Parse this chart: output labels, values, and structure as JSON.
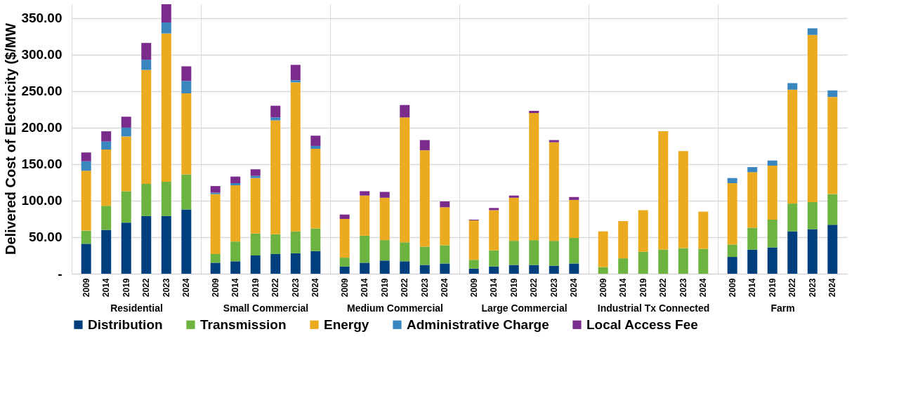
{
  "chart_data": [
    {
      "type": "bar",
      "stacked": true,
      "xlabel": "Residential",
      "ylabel": "Delivered Cost of Electricity ($/MW",
      "legend": "bottom",
      "grid": "y",
      "categories": [
        "2009",
        "2014",
        "2019",
        "2022",
        "2023",
        "2024"
      ],
      "ylim": [
        0,
        370
      ],
      "yticks": [
        {
          "value": 0,
          "label": "-"
        },
        {
          "value": 50,
          "label": "50.00"
        },
        {
          "value": 100,
          "label": "100.00"
        },
        {
          "value": 150,
          "label": "150.00"
        },
        {
          "value": 200,
          "label": "200.00"
        },
        {
          "value": 250,
          "label": "250.00"
        },
        {
          "value": 300,
          "label": "300.00"
        },
        {
          "value": 350,
          "label": "350.00"
        }
      ],
      "series": [
        {
          "name": "Distribution",
          "color": "#003f7d",
          "values": [
            41,
            60,
            70,
            79,
            79,
            88
          ]
        },
        {
          "name": "Transmission",
          "color": "#6db33f",
          "values": [
            18,
            33,
            43,
            44,
            47,
            48
          ]
        },
        {
          "name": "Energy",
          "color": "#ebab21",
          "values": [
            82,
            77,
            75,
            156,
            203,
            111
          ]
        },
        {
          "name": "Administrative Charge",
          "color": "#3a87bf",
          "values": [
            13,
            11,
            12,
            14,
            15,
            17
          ]
        },
        {
          "name": "Local Access Fee",
          "color": "#7b2b8c",
          "values": [
            12,
            14,
            15,
            23,
            25,
            20
          ]
        }
      ]
    },
    {
      "type": "bar",
      "stacked": true,
      "xlabel": "Small Commercial",
      "tick_labels": "x",
      "grid": "y",
      "categories": [
        "2009",
        "2014",
        "2019",
        "2022",
        "2023",
        "2024"
      ],
      "ylim": [
        0,
        370
      ],
      "yticks": [
        0,
        50,
        100,
        150,
        200,
        250,
        300,
        350
      ],
      "series": [
        {
          "name": "Distribution",
          "color": "#003f7d",
          "values": [
            15,
            17,
            25,
            27,
            28,
            31
          ]
        },
        {
          "name": "Transmission",
          "color": "#6db33f",
          "values": [
            12,
            27,
            30,
            27,
            30,
            31
          ]
        },
        {
          "name": "Energy",
          "color": "#ebab21",
          "values": [
            82,
            77,
            76,
            156,
            204,
            109
          ]
        },
        {
          "name": "Administrative Charge",
          "color": "#3a87bf",
          "values": [
            2,
            3,
            3,
            4,
            3,
            4
          ]
        },
        {
          "name": "Local Access Fee",
          "color": "#7b2b8c",
          "values": [
            9,
            9,
            9,
            16,
            21,
            14
          ]
        }
      ]
    },
    {
      "type": "bar",
      "stacked": true,
      "xlabel": "Medium Commercial",
      "tick_labels": "x",
      "grid": "y",
      "categories": [
        "2009",
        "2014",
        "2019",
        "2022",
        "2023",
        "2024"
      ],
      "ylim": [
        0,
        370
      ],
      "yticks": [
        0,
        50,
        100,
        150,
        200,
        250,
        300,
        350
      ],
      "series": [
        {
          "name": "Distribution",
          "color": "#003f7d",
          "values": [
            10,
            15,
            18,
            17,
            12,
            14
          ]
        },
        {
          "name": "Transmission",
          "color": "#6db33f",
          "values": [
            12,
            37,
            28,
            26,
            25,
            25
          ]
        },
        {
          "name": "Energy",
          "color": "#ebab21",
          "values": [
            53,
            55,
            58,
            171,
            132,
            52
          ]
        },
        {
          "name": "Administrative Charge",
          "color": "#3a87bf",
          "values": [
            0,
            0,
            0,
            0,
            0,
            0
          ]
        },
        {
          "name": "Local Access Fee",
          "color": "#7b2b8c",
          "values": [
            6,
            6,
            8,
            17,
            14,
            8
          ]
        }
      ]
    },
    {
      "type": "bar",
      "stacked": true,
      "xlabel": "Large Commercial",
      "tick_labels": "x",
      "grid": "y",
      "categories": [
        "2009",
        "2014",
        "2019",
        "2022",
        "2023",
        "2024"
      ],
      "ylim": [
        0,
        370
      ],
      "yticks": [
        0,
        50,
        100,
        150,
        200,
        250,
        300,
        350
      ],
      "series": [
        {
          "name": "Distribution",
          "color": "#003f7d",
          "values": [
            7,
            10,
            12,
            12,
            11,
            14
          ]
        },
        {
          "name": "Transmission",
          "color": "#6db33f",
          "values": [
            12,
            22,
            33,
            34,
            34,
            35
          ]
        },
        {
          "name": "Energy",
          "color": "#ebab21",
          "values": [
            54,
            55,
            59,
            174,
            135,
            52
          ]
        },
        {
          "name": "Administrative Charge",
          "color": "#3a87bf",
          "values": [
            0,
            0,
            0,
            0,
            0,
            0
          ]
        },
        {
          "name": "Local Access Fee",
          "color": "#7b2b8c",
          "values": [
            1,
            3,
            3,
            3,
            3,
            4
          ]
        }
      ]
    },
    {
      "type": "bar",
      "stacked": true,
      "xlabel": "Industrial Tx Connected",
      "tick_labels": "x",
      "grid": "y",
      "categories": [
        "2009",
        "2014",
        "2019",
        "2022",
        "2023",
        "2024"
      ],
      "ylim": [
        0,
        370
      ],
      "yticks": [
        0,
        50,
        100,
        150,
        200,
        250,
        300,
        350
      ],
      "series": [
        {
          "name": "Distribution",
          "color": "#003f7d",
          "values": [
            0,
            0,
            0,
            0,
            0,
            0
          ]
        },
        {
          "name": "Transmission",
          "color": "#6db33f",
          "values": [
            9,
            21,
            30,
            33,
            35,
            34
          ]
        },
        {
          "name": "Energy",
          "color": "#ebab21",
          "values": [
            49,
            51,
            57,
            162,
            133,
            51
          ]
        },
        {
          "name": "Administrative Charge",
          "color": "#3a87bf",
          "values": [
            0,
            0,
            0,
            0,
            0,
            0
          ]
        },
        {
          "name": "Local Access Fee",
          "color": "#7b2b8c",
          "values": [
            0,
            0,
            0,
            0,
            0,
            0
          ]
        }
      ]
    },
    {
      "type": "bar",
      "stacked": true,
      "xlabel": "Farm",
      "tick_labels": "x",
      "grid": "y",
      "categories": [
        "2009",
        "2014",
        "2019",
        "2022",
        "2023",
        "2024"
      ],
      "ylim": [
        0,
        370
      ],
      "yticks": [
        0,
        50,
        100,
        150,
        200,
        250,
        300,
        350
      ],
      "series": [
        {
          "name": "Distribution",
          "color": "#003f7d",
          "values": [
            23,
            33,
            36,
            58,
            61,
            67
          ]
        },
        {
          "name": "Transmission",
          "color": "#6db33f",
          "values": [
            17,
            30,
            38,
            38,
            37,
            42
          ]
        },
        {
          "name": "Energy",
          "color": "#ebab21",
          "values": [
            84,
            76,
            74,
            156,
            229,
            133
          ]
        },
        {
          "name": "Administrative Charge",
          "color": "#3a87bf",
          "values": [
            7,
            7,
            7,
            9,
            9,
            9
          ]
        },
        {
          "name": "Local Access Fee",
          "color": "#7b2b8c",
          "values": [
            0,
            0,
            0,
            0,
            0,
            0
          ]
        }
      ]
    }
  ]
}
